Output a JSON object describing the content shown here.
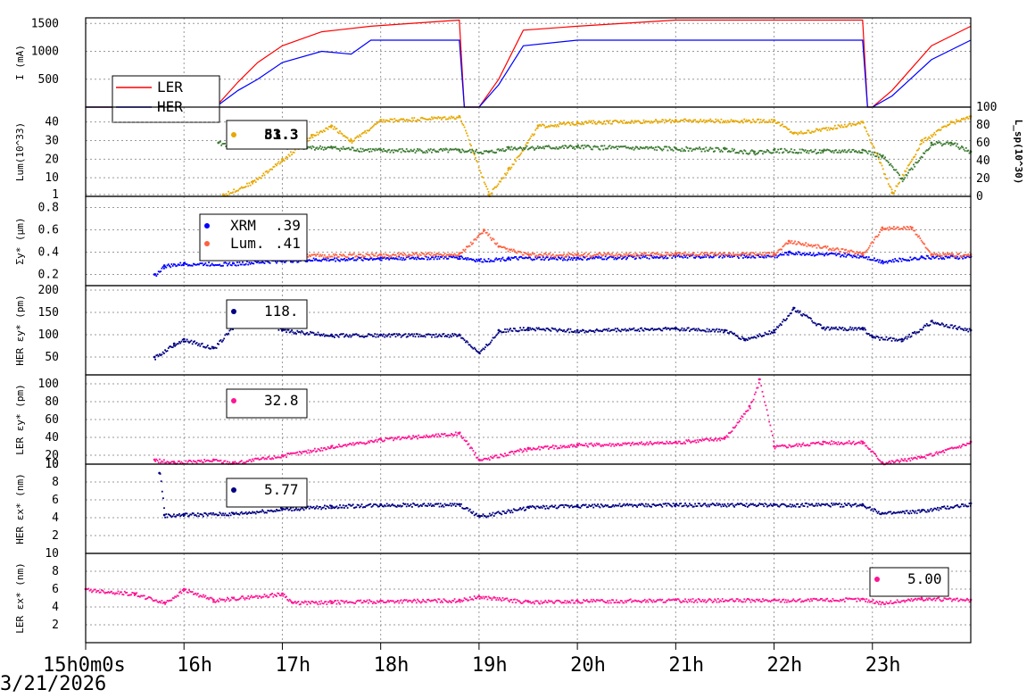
{
  "chart_data": [
    {
      "type": "line",
      "ylabel": "I (mA)",
      "yticks": [
        500,
        1000,
        1500
      ],
      "ylim": [
        0,
        1600
      ],
      "legend": [
        "LER",
        "HER"
      ],
      "colors": [
        "#ff0000",
        "#0000ff"
      ],
      "series": [
        {
          "name": "LER",
          "x": [
            15.0,
            16.32,
            16.55,
            16.75,
            17.0,
            17.4,
            17.9,
            18.8,
            18.85,
            19.0,
            19.2,
            19.45,
            20.0,
            21.0,
            22.0,
            22.9,
            22.95,
            23.0,
            23.2,
            23.6,
            24.0
          ],
          "y": [
            0,
            0,
            450,
            800,
            1100,
            1350,
            1450,
            1560,
            0,
            0,
            500,
            1380,
            1450,
            1560,
            1560,
            1560,
            0,
            0,
            300,
            1100,
            1450
          ]
        },
        {
          "name": "HER",
          "x": [
            15.0,
            16.32,
            16.55,
            16.75,
            17.0,
            17.4,
            17.7,
            17.9,
            18.8,
            18.85,
            19.0,
            19.2,
            19.45,
            20.0,
            21.0,
            22.0,
            22.9,
            22.95,
            23.0,
            23.2,
            23.6,
            24.0
          ],
          "y": [
            0,
            0,
            300,
            500,
            800,
            1000,
            950,
            1200,
            1200,
            0,
            0,
            400,
            1100,
            1200,
            1200,
            1200,
            1200,
            0,
            0,
            200,
            850,
            1200
          ]
        }
      ]
    },
    {
      "type": "scatter",
      "ylabel": "Lum(10^33)",
      "y2label": "L_sp(10^30)",
      "yticks": [
        1,
        10,
        20,
        30,
        40
      ],
      "y2ticks": [
        0,
        20,
        40,
        60,
        80,
        100
      ],
      "ylim": [
        0,
        48
      ],
      "y2lim": [
        0,
        100
      ],
      "legend_values": [
        "51.3",
        "83.3"
      ],
      "colors": [
        "#e6a800",
        "#3a7a30"
      ],
      "series": [
        {
          "name": "Lum",
          "x": [
            16.4,
            16.7,
            17.0,
            17.3,
            17.5,
            17.7,
            18.0,
            18.8,
            19.1,
            19.3,
            19.6,
            20.0,
            21.0,
            22.0,
            22.2,
            22.9,
            23.2,
            23.5,
            23.8,
            24.0
          ],
          "y": [
            1,
            8,
            20,
            33,
            38,
            30,
            41,
            43,
            1,
            15,
            38,
            40,
            41,
            41,
            34,
            40,
            2,
            30,
            40,
            43
          ]
        },
        {
          "name": "Lsp",
          "x": [
            16.35,
            16.5,
            17.0,
            17.5,
            18.0,
            18.8,
            19.1,
            19.3,
            20.0,
            21.0,
            21.5,
            21.8,
            22.0,
            22.5,
            22.9,
            23.1,
            23.3,
            23.6,
            23.8,
            24.0
          ],
          "y": [
            60,
            58,
            56,
            55,
            52,
            52,
            50,
            55,
            56,
            54,
            53,
            50,
            52,
            51,
            52,
            45,
            20,
            60,
            60,
            50
          ]
        }
      ]
    },
    {
      "type": "scatter",
      "ylabel": "Σy* (µm)",
      "yticks": [
        0.2,
        0.4,
        0.6,
        0.8
      ],
      "ylim": [
        0.1,
        0.9
      ],
      "legend": [
        "XRM",
        "Lum."
      ],
      "legend_values": [
        ".39",
        ".41"
      ],
      "colors": [
        "#0000ff",
        "#ff6040"
      ],
      "series": [
        {
          "name": "XRM",
          "x": [
            15.7,
            15.8,
            16.0,
            16.5,
            17.0,
            18.0,
            18.8,
            19.0,
            19.3,
            20.0,
            21.0,
            22.0,
            22.15,
            22.9,
            23.1,
            23.5,
            24.0
          ],
          "y": [
            0.2,
            0.28,
            0.3,
            0.3,
            0.33,
            0.35,
            0.36,
            0.33,
            0.35,
            0.35,
            0.37,
            0.37,
            0.4,
            0.37,
            0.32,
            0.36,
            0.36
          ]
        },
        {
          "name": "Lum.",
          "x": [
            16.5,
            17.0,
            18.0,
            18.8,
            19.05,
            19.2,
            19.5,
            20.0,
            21.0,
            22.0,
            22.15,
            22.9,
            23.1,
            23.4,
            23.6,
            24.0
          ],
          "y": [
            0.35,
            0.37,
            0.38,
            0.39,
            0.6,
            0.45,
            0.38,
            0.38,
            0.39,
            0.39,
            0.5,
            0.39,
            0.62,
            0.62,
            0.38,
            0.38
          ]
        }
      ]
    },
    {
      "type": "scatter",
      "ylabel": "HER εy* (pm)",
      "yticks": [
        50,
        100,
        150,
        200
      ],
      "ylim": [
        10,
        210
      ],
      "legend_values": [
        "118."
      ],
      "colors": [
        "#000080"
      ],
      "series": [
        {
          "name": "",
          "x": [
            15.7,
            15.9,
            16.0,
            16.3,
            16.5,
            16.7,
            17.0,
            17.5,
            18.0,
            18.8,
            19.0,
            19.2,
            19.5,
            20.0,
            21.0,
            21.5,
            21.7,
            22.0,
            22.2,
            22.5,
            22.9,
            23.0,
            23.3,
            23.6,
            24.0
          ],
          "y": [
            50,
            80,
            90,
            70,
            120,
            150,
            110,
            100,
            100,
            100,
            60,
            110,
            115,
            110,
            115,
            110,
            90,
            110,
            160,
            115,
            115,
            95,
            90,
            130,
            110
          ]
        }
      ]
    },
    {
      "type": "scatter",
      "ylabel": "LER εy* (pm)",
      "yticks": [
        10,
        20,
        40,
        60,
        80,
        100
      ],
      "ylim": [
        10,
        110
      ],
      "legend_values": [
        "32.8"
      ],
      "colors": [
        "#ff1493"
      ],
      "series": [
        {
          "name": "",
          "x": [
            15.7,
            15.9,
            16.3,
            16.5,
            17.0,
            17.5,
            18.0,
            18.8,
            19.0,
            19.5,
            20.0,
            21.0,
            21.5,
            21.75,
            21.85,
            22.0,
            22.5,
            22.9,
            23.1,
            23.5,
            24.0
          ],
          "y": [
            15,
            12,
            15,
            12,
            20,
            30,
            38,
            45,
            15,
            28,
            32,
            35,
            40,
            75,
            105,
            30,
            35,
            35,
            12,
            18,
            35
          ]
        }
      ]
    },
    {
      "type": "scatter",
      "ylabel": "HER εx* (nm)",
      "yticks": [
        2,
        4,
        6,
        8,
        10
      ],
      "ylim": [
        0,
        10
      ],
      "legend_values": [
        "5.77"
      ],
      "colors": [
        "#000080"
      ],
      "series": [
        {
          "name": "",
          "x": [
            15.75,
            15.8,
            16.0,
            16.5,
            17.0,
            17.5,
            18.0,
            18.8,
            19.0,
            19.5,
            20.0,
            21.0,
            22.0,
            22.9,
            23.1,
            23.5,
            24.0
          ],
          "y": [
            9,
            4.3,
            4.4,
            4.5,
            5.0,
            5.3,
            5.5,
            5.5,
            4.2,
            5.2,
            5.4,
            5.5,
            5.5,
            5.5,
            4.5,
            4.8,
            5.6
          ]
        }
      ]
    },
    {
      "type": "scatter",
      "ylabel": "LER εx* (nm)",
      "yticks": [
        2,
        4,
        6,
        8,
        10
      ],
      "ylim": [
        0,
        10
      ],
      "legend_values": [
        "5.00"
      ],
      "colors": [
        "#ff1493"
      ],
      "series": [
        {
          "name": "",
          "x": [
            15.0,
            15.5,
            15.8,
            16.0,
            16.3,
            16.5,
            17.0,
            17.1,
            17.5,
            18.0,
            18.8,
            19.0,
            19.5,
            20.0,
            21.0,
            22.0,
            22.9,
            23.1,
            23.5,
            24.0
          ],
          "y": [
            6,
            5.5,
            4.5,
            6,
            4.8,
            5.0,
            5.5,
            4.5,
            4.6,
            4.7,
            4.8,
            5.2,
            4.6,
            4.7,
            4.8,
            4.8,
            4.9,
            4.5,
            5.0,
            4.8
          ]
        }
      ]
    }
  ],
  "x_axis": {
    "ticks": [
      "15h0m0s",
      "16h",
      "17h",
      "18h",
      "19h",
      "20h",
      "21h",
      "22h",
      "23h"
    ],
    "date": "3/21/2026",
    "xlim": [
      15.0,
      24.0
    ]
  }
}
